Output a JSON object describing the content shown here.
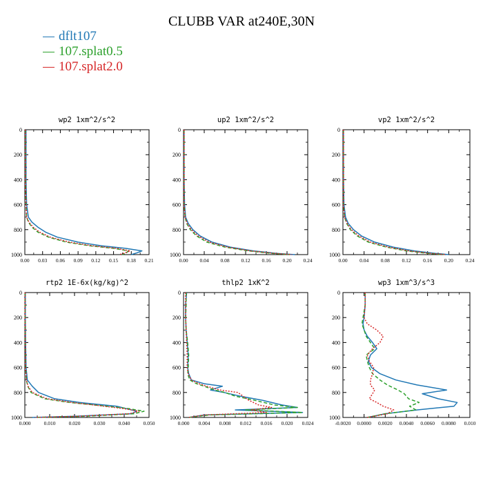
{
  "title": "CLUBB VAR at240E,30N",
  "legend": [
    {
      "name": "dflt107",
      "color": "#1f77b4",
      "dash": "solid"
    },
    {
      "name": "107.splat0.5",
      "color": "#2ca02c",
      "dash": "dash"
    },
    {
      "name": "107.splat2.0",
      "color": "#d62728",
      "dash": "dot"
    }
  ],
  "chart_data": [
    {
      "type": "line",
      "title": "wp2  1xm^2/s^2",
      "xlim": [
        0,
        0.21
      ],
      "xticks": [
        "0.00",
        "0.03",
        "0.06",
        "0.09",
        "0.12",
        "0.15",
        "0.18",
        "0.21"
      ],
      "ylim": [
        1000,
        0
      ],
      "yticks": [
        0,
        200,
        400,
        600,
        800,
        1000
      ],
      "y": [
        0,
        200,
        400,
        600,
        700,
        740,
        780,
        820,
        860,
        900,
        930,
        950,
        970,
        985,
        1000
      ],
      "series": [
        {
          "name": "dflt107",
          "x": [
            0.002,
            0.002,
            0.002,
            0.003,
            0.006,
            0.012,
            0.022,
            0.035,
            0.055,
            0.09,
            0.13,
            0.17,
            0.198,
            0.19,
            0.18
          ]
        },
        {
          "name": "107.splat0.5",
          "x": [
            0.001,
            0.001,
            0.001,
            0.002,
            0.003,
            0.006,
            0.012,
            0.022,
            0.04,
            0.07,
            0.11,
            0.15,
            0.175,
            0.172,
            0.165
          ]
        },
        {
          "name": "107.splat2.0",
          "x": [
            0.001,
            0.001,
            0.001,
            0.002,
            0.003,
            0.007,
            0.014,
            0.025,
            0.043,
            0.075,
            0.115,
            0.155,
            0.178,
            0.17,
            0.16
          ]
        }
      ]
    },
    {
      "type": "line",
      "title": "up2  1xm^2/s^2",
      "xlim": [
        0,
        0.24
      ],
      "xticks": [
        "0.00",
        "0.04",
        "0.08",
        "0.12",
        "0.16",
        "0.20",
        "0.24"
      ],
      "ylim": [
        1000,
        0
      ],
      "yticks": [
        0,
        200,
        400,
        600,
        800,
        1000
      ],
      "y": [
        0,
        200,
        400,
        600,
        700,
        750,
        800,
        850,
        900,
        940,
        970,
        990,
        1000
      ],
      "series": [
        {
          "name": "dflt107",
          "x": [
            0.001,
            0.001,
            0.001,
            0.002,
            0.004,
            0.009,
            0.018,
            0.032,
            0.055,
            0.09,
            0.135,
            0.18,
            0.215
          ]
        },
        {
          "name": "107.splat0.5",
          "x": [
            0.001,
            0.001,
            0.001,
            0.001,
            0.003,
            0.006,
            0.013,
            0.025,
            0.045,
            0.08,
            0.125,
            0.17,
            0.205
          ]
        },
        {
          "name": "107.splat2.0",
          "x": [
            0.001,
            0.001,
            0.001,
            0.001,
            0.003,
            0.007,
            0.015,
            0.028,
            0.05,
            0.085,
            0.13,
            0.175,
            0.21
          ]
        }
      ]
    },
    {
      "type": "line",
      "title": "vp2  1xm^2/s^2",
      "xlim": [
        0,
        0.24
      ],
      "xticks": [
        "0.00",
        "0.04",
        "0.08",
        "0.12",
        "0.16",
        "0.20",
        "0.24"
      ],
      "ylim": [
        1000,
        0
      ],
      "yticks": [
        0,
        200,
        400,
        600,
        800,
        1000
      ],
      "y": [
        0,
        200,
        400,
        600,
        700,
        750,
        800,
        850,
        900,
        940,
        970,
        990,
        1000
      ],
      "series": [
        {
          "name": "dflt107",
          "x": [
            0.001,
            0.001,
            0.001,
            0.002,
            0.005,
            0.01,
            0.02,
            0.035,
            0.06,
            0.095,
            0.135,
            0.175,
            0.2
          ]
        },
        {
          "name": "107.splat0.5",
          "x": [
            0.001,
            0.001,
            0.001,
            0.001,
            0.003,
            0.007,
            0.014,
            0.027,
            0.048,
            0.082,
            0.12,
            0.16,
            0.19
          ]
        },
        {
          "name": "107.splat2.0",
          "x": [
            0.001,
            0.001,
            0.001,
            0.001,
            0.003,
            0.008,
            0.016,
            0.03,
            0.052,
            0.086,
            0.125,
            0.165,
            0.195
          ]
        }
      ]
    },
    {
      "type": "line",
      "title": "rtp2  1E-6x(kg/kg)^2",
      "xlim": [
        0,
        0.05
      ],
      "xticks": [
        "0.000",
        "0.010",
        "0.020",
        "0.030",
        "0.040",
        "0.050"
      ],
      "ylim": [
        1000,
        0
      ],
      "yticks": [
        0,
        200,
        400,
        600,
        800,
        1000
      ],
      "y": [
        0,
        200,
        400,
        600,
        700,
        750,
        800,
        850,
        880,
        910,
        930,
        950,
        970,
        990,
        1000
      ],
      "series": [
        {
          "name": "dflt107",
          "x": [
            0.0002,
            0.0002,
            0.0003,
            0.0005,
            0.001,
            0.003,
            0.0055,
            0.012,
            0.022,
            0.037,
            0.041,
            0.045,
            0.043,
            0.02,
            0.003
          ]
        },
        {
          "name": "107.splat0.5",
          "x": [
            0.0001,
            0.0001,
            0.0002,
            0.0003,
            0.0006,
            0.0012,
            0.0025,
            0.008,
            0.018,
            0.033,
            0.042,
            0.048,
            0.044,
            0.025,
            0.004
          ]
        },
        {
          "name": "107.splat2.0",
          "x": [
            0.0001,
            0.0001,
            0.0002,
            0.0003,
            0.0006,
            0.0013,
            0.003,
            0.009,
            0.019,
            0.032,
            0.04,
            0.046,
            0.042,
            0.022,
            0.004
          ]
        }
      ]
    },
    {
      "type": "line",
      "title": "thlp2  1xK^2",
      "xlim": [
        0,
        0.024
      ],
      "xticks": [
        "0.000",
        "0.004",
        "0.008",
        "0.012",
        "0.016",
        "0.020",
        "0.024"
      ],
      "ylim": [
        1000,
        0
      ],
      "yticks": [
        0,
        200,
        400,
        600,
        800,
        1000
      ],
      "y": [
        0,
        100,
        200,
        300,
        400,
        500,
        600,
        650,
        700,
        730,
        750,
        780,
        800,
        830,
        860,
        900,
        920,
        940,
        960,
        980,
        1000
      ],
      "series": [
        {
          "name": "dflt107",
          "x": [
            0.0006,
            0.0004,
            0.0004,
            0.0005,
            0.0007,
            0.0009,
            0.0008,
            0.001,
            0.0015,
            0.004,
            0.0075,
            0.0052,
            0.0078,
            0.011,
            0.015,
            0.019,
            0.022,
            0.01,
            0.023,
            0.004,
            0.001
          ]
        },
        {
          "name": "107.splat0.5",
          "x": [
            0.0005,
            0.0005,
            0.0004,
            0.0005,
            0.0008,
            0.001,
            0.0009,
            0.0008,
            0.0012,
            0.0025,
            0.004,
            0.006,
            0.008,
            0.01,
            0.0135,
            0.0175,
            0.022,
            0.012,
            0.023,
            0.005,
            0.001
          ]
        },
        {
          "name": "107.splat2.0",
          "x": [
            0.0004,
            0.0004,
            0.0004,
            0.0005,
            0.0006,
            0.0007,
            0.0007,
            0.0009,
            0.0015,
            0.003,
            0.0045,
            0.007,
            0.0105,
            0.0115,
            0.0125,
            0.0145,
            0.017,
            0.013,
            0.016,
            0.004,
            0.001
          ]
        }
      ]
    },
    {
      "type": "line",
      "title": "wp3  1xm^3/s^3",
      "xlim": [
        -0.002,
        0.01
      ],
      "xticks": [
        "-0.0020",
        "0.0000",
        "0.0020",
        "0.0040",
        "0.0060",
        "0.0080",
        "0.010"
      ],
      "ylim": [
        1000,
        0
      ],
      "yticks": [
        0,
        200,
        400,
        600,
        800,
        1000
      ],
      "y": [
        0,
        100,
        200,
        250,
        300,
        350,
        400,
        450,
        500,
        550,
        600,
        650,
        700,
        740,
        780,
        810,
        850,
        880,
        910,
        940,
        970,
        1000
      ],
      "series": [
        {
          "name": "dflt107",
          "x": [
            0.0001,
            0.0001,
            0.0,
            -0.0001,
            0.0,
            0.0003,
            0.0008,
            0.0012,
            0.0006,
            0.0004,
            0.0007,
            0.0015,
            0.003,
            0.005,
            0.0078,
            0.0055,
            0.007,
            0.0088,
            0.0085,
            0.005,
            0.002,
            0.0003
          ]
        },
        {
          "name": "107.splat0.5",
          "x": [
            0.0001,
            0.0001,
            -0.0001,
            -0.0002,
            0.0,
            0.0002,
            0.0006,
            0.001,
            0.0002,
            0.0003,
            0.0005,
            0.0008,
            0.0015,
            0.0022,
            0.0032,
            0.0038,
            0.0042,
            0.0052,
            0.0043,
            0.0049,
            0.002,
            0.0003
          ]
        },
        {
          "name": "107.splat2.0",
          "x": [
            0.0001,
            0.0001,
            0.0,
            0.0003,
            0.0012,
            0.0018,
            0.0015,
            0.0008,
            0.0003,
            0.0005,
            0.0009,
            0.0008,
            0.0006,
            0.0006,
            0.001,
            0.0008,
            0.0005,
            0.0012,
            0.0018,
            0.0028,
            0.0022,
            0.0003
          ]
        }
      ]
    }
  ]
}
